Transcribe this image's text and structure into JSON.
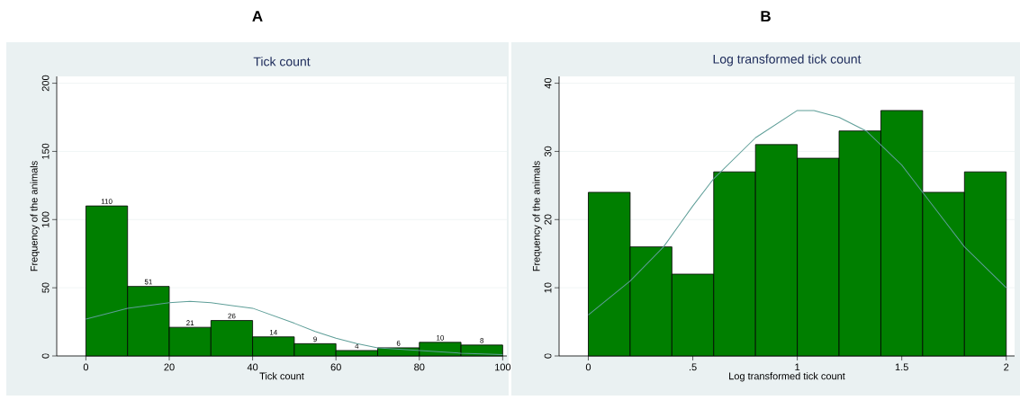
{
  "chart_data": [
    {
      "type": "histogram",
      "title": "A",
      "subtitle": "Tick count",
      "xlabel": "Tick count",
      "ylabel": "Frequency of the animals",
      "bins": [
        0,
        10,
        20,
        30,
        40,
        50,
        60,
        70,
        80,
        90,
        100
      ],
      "values": [
        110,
        51,
        21,
        26,
        14,
        9,
        4,
        6,
        10,
        8
      ],
      "color": "#007f00",
      "value_labels": [
        "110",
        "51",
        "21",
        "26",
        "14",
        "9",
        "4",
        "6",
        "10",
        "8"
      ],
      "grid": "y",
      "xlim": [
        -7,
        101
      ],
      "ylim": [
        0,
        205
      ],
      "xticks": [
        0,
        20,
        40,
        60,
        80,
        100
      ],
      "yticks": [
        0,
        50,
        100,
        150,
        200
      ],
      "series": [
        {
          "type": "line",
          "color": "#5e9e98",
          "x": [
            0,
            10,
            20,
            25,
            30,
            40,
            50,
            55,
            60,
            65,
            70,
            80,
            90,
            100
          ],
          "values": [
            27,
            35,
            39,
            40,
            39,
            35,
            24,
            18,
            13,
            9,
            6,
            4,
            2,
            1
          ]
        }
      ]
    },
    {
      "type": "histogram",
      "title": "B",
      "subtitle": "Log transformed tick count",
      "xlabel": "Log transformed tick count",
      "ylabel": "Frequency of the animals",
      "bins": [
        0,
        0.2,
        0.4,
        0.6,
        0.8,
        1.0,
        1.2,
        1.4,
        1.6,
        1.8,
        2.0
      ],
      "values": [
        24,
        16,
        12,
        27,
        31,
        29,
        33,
        36,
        24,
        27
      ],
      "color": "#007f00",
      "grid": "y",
      "xlim": [
        -0.14,
        2.04
      ],
      "ylim": [
        0,
        41
      ],
      "xticks": [
        0,
        {
          "value": 0.5,
          "label": ".5"
        },
        1,
        1.5,
        2
      ],
      "yticks": [
        0,
        10,
        20,
        30,
        40
      ],
      "series": [
        {
          "type": "line",
          "color": "#5e9e98",
          "x": [
            0,
            0.2,
            0.36,
            0.5,
            0.6,
            0.8,
            1.0,
            1.08,
            1.2,
            1.33,
            1.5,
            1.6,
            1.8,
            2.0
          ],
          "values": [
            6,
            11,
            16,
            22,
            26,
            32,
            36,
            36,
            35,
            33,
            28,
            24,
            16,
            10
          ]
        }
      ]
    }
  ]
}
